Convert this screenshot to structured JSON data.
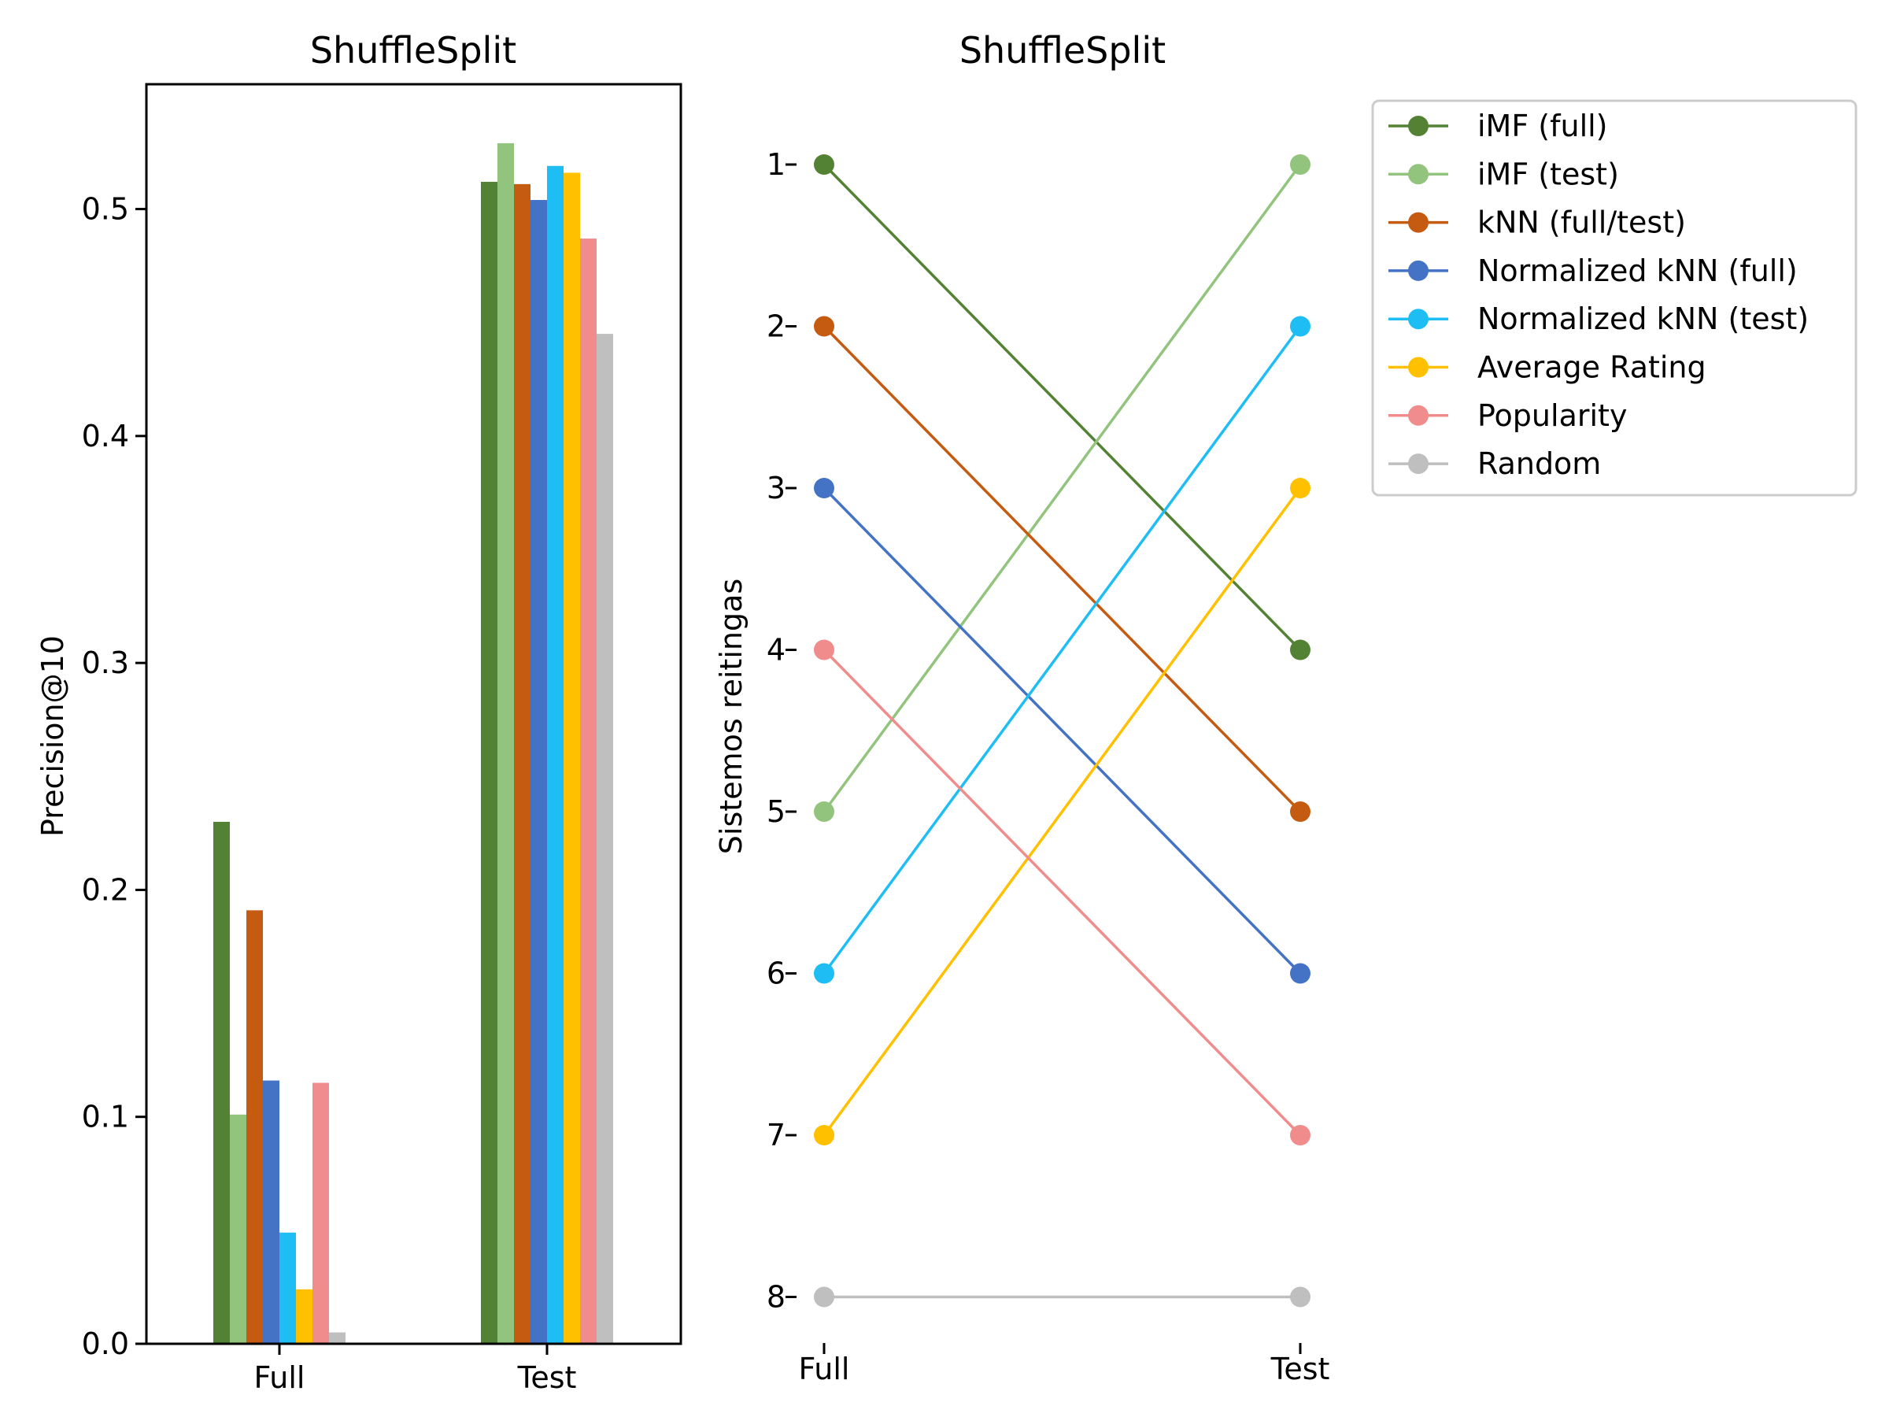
{
  "colors": {
    "imf_full": "#548235",
    "imf_test": "#93C47D",
    "knn": "#C55A11",
    "nknn_full": "#4472C4",
    "nknn_test": "#1EBEF5",
    "avg": "#FFC000",
    "pop": "#F08C8C",
    "random": "#BFBFBF"
  },
  "chart_data": [
    {
      "type": "bar",
      "title": "ShuffleSplit",
      "xlabel": "",
      "ylabel": "Precision@10",
      "categories": [
        "Full",
        "Test"
      ],
      "ylim": [
        0,
        0.555
      ],
      "yticks": [
        "0.0",
        "0.1",
        "0.2",
        "0.3",
        "0.4",
        "0.5"
      ],
      "grid": false,
      "series": [
        {
          "name": "iMF (full)",
          "values": [
            0.23,
            0.512
          ]
        },
        {
          "name": "iMF (test)",
          "values": [
            0.101,
            0.529
          ]
        },
        {
          "name": "kNN (full/test)",
          "values": [
            0.191,
            0.511
          ]
        },
        {
          "name": "Normalized kNN (full)",
          "values": [
            0.116,
            0.504
          ]
        },
        {
          "name": "Normalized kNN (test)",
          "values": [
            0.049,
            0.519
          ]
        },
        {
          "name": "Average Rating",
          "values": [
            0.024,
            0.516
          ]
        },
        {
          "name": "Popularity",
          "values": [
            0.115,
            0.487
          ]
        },
        {
          "name": "Random",
          "values": [
            0.005,
            0.445
          ]
        }
      ]
    },
    {
      "type": "line",
      "title": "ShuffleSplit",
      "xlabel": "",
      "ylabel": "Sistemos reitingas",
      "categories": [
        "Full",
        "Test"
      ],
      "yticks": [
        "1",
        "2",
        "3",
        "4",
        "5",
        "6",
        "7",
        "8"
      ],
      "y_inverted": true,
      "grid": false,
      "legend": "outside-right-top",
      "series": [
        {
          "name": "iMF (full)",
          "values": [
            1,
            4
          ]
        },
        {
          "name": "iMF (test)",
          "values": [
            5,
            1
          ]
        },
        {
          "name": "kNN (full/test)",
          "values": [
            2,
            5
          ]
        },
        {
          "name": "Normalized kNN (full)",
          "values": [
            3,
            6
          ]
        },
        {
          "name": "Normalized kNN (test)",
          "values": [
            6,
            2
          ]
        },
        {
          "name": "Average Rating",
          "values": [
            7,
            3
          ]
        },
        {
          "name": "Popularity",
          "values": [
            4,
            7
          ]
        },
        {
          "name": "Random",
          "values": [
            8,
            8
          ]
        }
      ]
    }
  ]
}
